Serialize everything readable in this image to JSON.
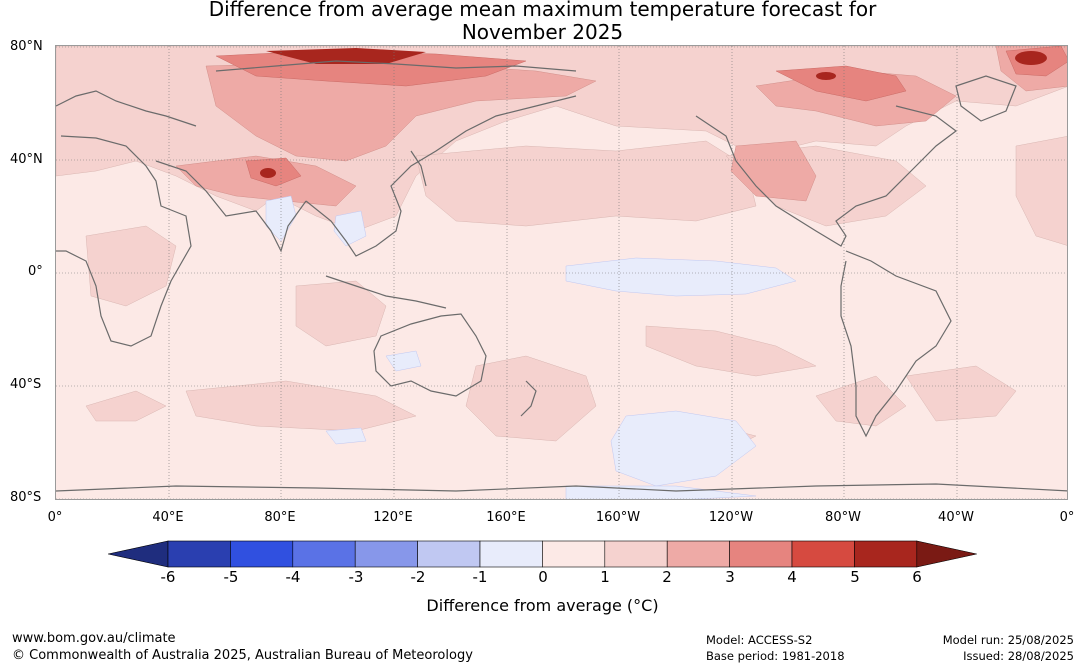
{
  "title_line1": "Difference from average mean maximum temperature forecast for",
  "title_line2": "November 2025",
  "lat_labels": [
    "80°N",
    "40°N",
    "0°",
    "40°S",
    "80°S"
  ],
  "lon_labels": [
    "0°",
    "40°E",
    "80°E",
    "120°E",
    "160°E",
    "160°W",
    "120°W",
    "80°W",
    "40°W",
    "0°"
  ],
  "colorbar": {
    "ticks": [
      "-6",
      "-5",
      "-4",
      "-3",
      "-2",
      "-1",
      "0",
      "1",
      "2",
      "3",
      "4",
      "5",
      "6"
    ],
    "colors": [
      "#1f2d7e",
      "#2a3fb0",
      "#3050e0",
      "#5a72e6",
      "#8797ea",
      "#c0c8f2",
      "#e8ecfb",
      "#fce9e6",
      "#f5d2cf",
      "#eeaaa6",
      "#e6847f",
      "#d64a40",
      "#a8261e",
      "#7a1a14"
    ],
    "label": "Difference from average (°C)"
  },
  "footer": {
    "website": "www.bom.gov.au/climate",
    "copyright": "© Commonwealth of Australia 2025, Australian Bureau of Meteorology",
    "model": "Model: ACCESS-S2",
    "base_period": "Base period: 1981-2018",
    "model_run": "Model run: 25/08/2025",
    "issued": "Issued: 28/08/2025"
  }
}
